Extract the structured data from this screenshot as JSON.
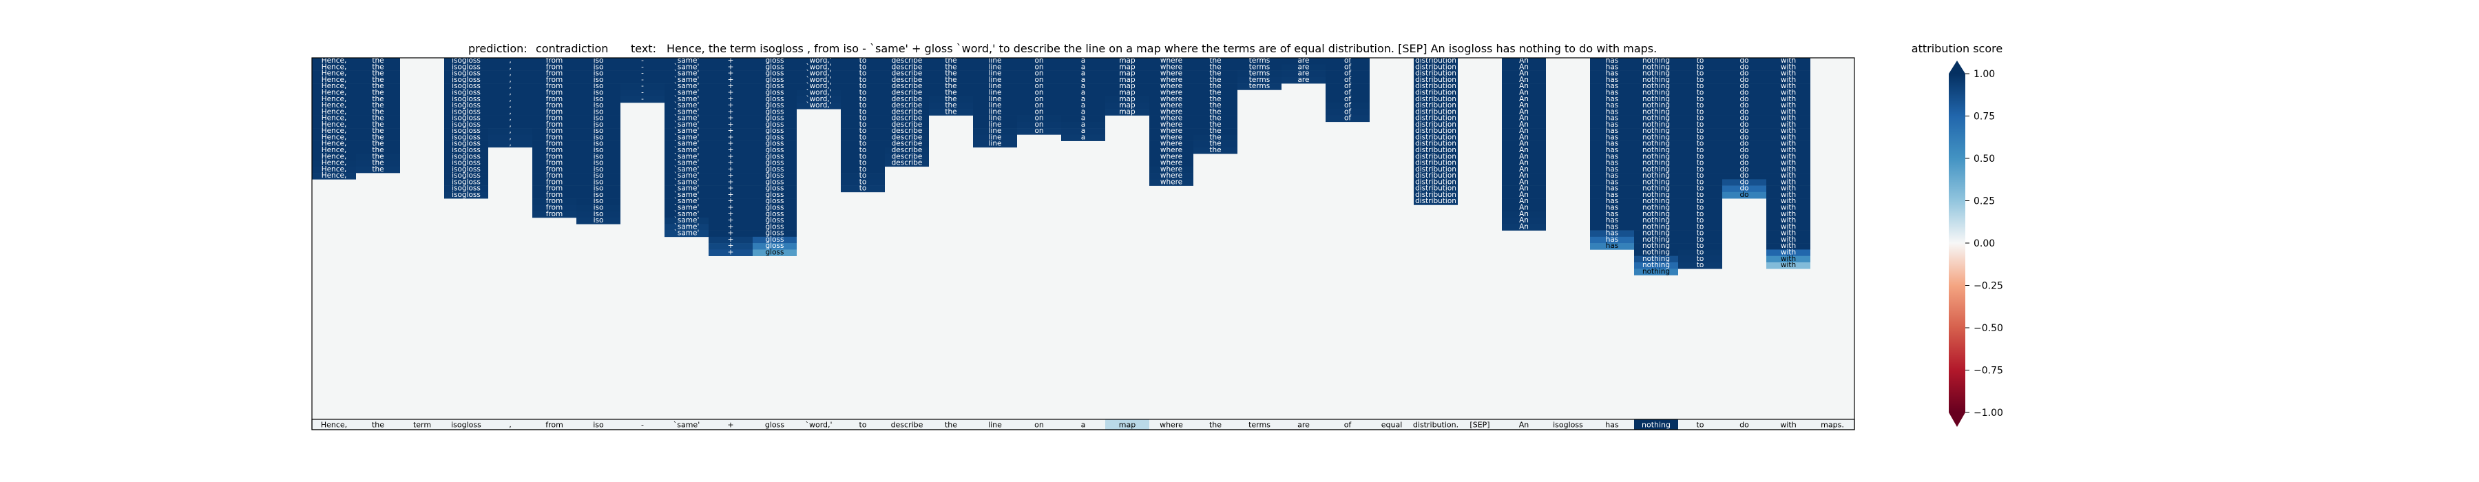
{
  "chart_data": {
    "type": "heatmap",
    "title": {
      "prediction_label": "prediction:",
      "prediction": "contradiction",
      "text_label": "text:",
      "text": "Hence, the term isogloss , from iso - `same' + gloss `word,' to describe the line on a map where the terms are of equal distribution. [SEP] An isogloss has nothing to do with maps."
    },
    "tokens": [
      "Hence,",
      "the",
      "term",
      "isogloss",
      ",",
      "from",
      "iso",
      "-",
      "`same'",
      "+",
      "gloss",
      "`word,'",
      "to",
      "describe",
      "the",
      "line",
      "on",
      "a",
      "map",
      "where",
      "the",
      "terms",
      "are",
      "of",
      "equal",
      "distribution.",
      "[SEP]",
      "An",
      "isogloss",
      "has",
      "nothing",
      "to",
      "do",
      "with",
      "maps."
    ],
    "row_labels": [
      "Hence,",
      "the",
      "term",
      "isogloss",
      ",",
      "from",
      "iso",
      "-",
      "`same'",
      "+",
      "gloss",
      "`word,'",
      "to",
      "describe",
      "the",
      "line",
      "on",
      "a",
      "map",
      "where",
      "the",
      "terms",
      "are",
      "of",
      "equal",
      "distribution",
      "An",
      "isogloss",
      "has",
      "nothing",
      "to",
      "do",
      "with",
      "maps."
    ],
    "column_heights": [
      19,
      18,
      0,
      22,
      14,
      25,
      26,
      7,
      28,
      31,
      31,
      8,
      21,
      17,
      9,
      14,
      12,
      13,
      9,
      20,
      15,
      5,
      4,
      10,
      0,
      23,
      0,
      27,
      0,
      30,
      34,
      33,
      22,
      33,
      0
    ],
    "column_end_values": [
      0.95,
      0.95,
      null,
      0.95,
      0.95,
      0.95,
      0.95,
      0.95,
      0.9,
      0.85,
      0.45,
      0.95,
      0.95,
      0.95,
      0.95,
      0.95,
      0.95,
      0.95,
      0.95,
      0.95,
      0.95,
      0.95,
      0.95,
      0.95,
      null,
      0.95,
      null,
      0.95,
      null,
      0.6,
      0.6,
      null,
      0.6,
      0.3,
      null
    ],
    "bottom_row_values": [
      0.02,
      0.02,
      0.02,
      0.02,
      0.02,
      0.02,
      0.02,
      0.02,
      0.02,
      0.02,
      0.02,
      0.02,
      0.02,
      0.02,
      0.02,
      0.02,
      0.02,
      0.02,
      0.15,
      0.02,
      0.02,
      0.02,
      0.02,
      0.02,
      0.02,
      0.02,
      0.02,
      0.02,
      0.02,
      0.02,
      1.0,
      0.02,
      0.02,
      0.02,
      0.02
    ],
    "colorbar": {
      "label": "attribution score",
      "ticks": [
        "1.00",
        "0.75",
        "0.50",
        "0.25",
        "0.00",
        "−0.25",
        "−0.50",
        "−0.75",
        "−1.00"
      ],
      "tick_values": [
        1,
        0.75,
        0.5,
        0.25,
        0,
        -0.25,
        -0.5,
        -0.75,
        -1
      ],
      "range": [
        -1,
        1
      ],
      "colormap": "RdBu",
      "extend": "both"
    },
    "colors": {
      "deep_blue": "#08306b",
      "mid_blue": "#2166ac",
      "neutral": "#f7f7f7",
      "deep_red": "#67001f",
      "frame": "#000000"
    }
  }
}
